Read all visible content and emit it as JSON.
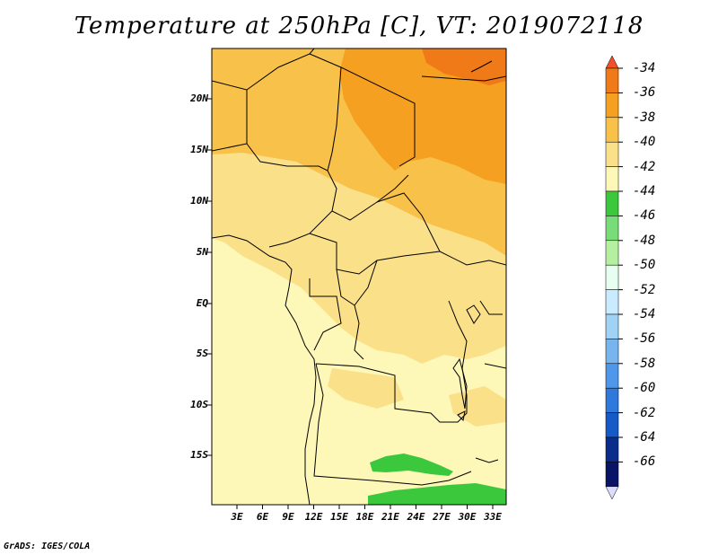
{
  "title": "Temperature at 250hPa [C], VT: 2019072118",
  "credit": "GrADS: IGES/COLA",
  "map": {
    "lat_labels": [
      "20N",
      "15N",
      "10N",
      "5N",
      "EQ",
      "5S",
      "10S",
      "15S"
    ],
    "lon_labels": [
      "3E",
      "6E",
      "9E",
      "12E",
      "15E",
      "18E",
      "21E",
      "24E",
      "27E",
      "30E",
      "33E"
    ]
  },
  "colorbar": {
    "labels": [
      "-34",
      "-36",
      "-38",
      "-40",
      "-42",
      "-44",
      "-46",
      "-48",
      "-50",
      "-52",
      "-54",
      "-56",
      "-58",
      "-60",
      "-62",
      "-64",
      "-66"
    ],
    "colors": [
      "#f0502a",
      "#f07a18",
      "#f5a020",
      "#f8c24a",
      "#fbe08a",
      "#fdf7b8",
      "#3cc83c",
      "#78dc78",
      "#b4f0a0",
      "#e6fff0",
      "#c8ebff",
      "#a0d2f5",
      "#78b4ee",
      "#4f97ea",
      "#2f78dc",
      "#165ac8",
      "#0a2d8c",
      "#0a1466",
      "#dcdcff"
    ]
  }
}
